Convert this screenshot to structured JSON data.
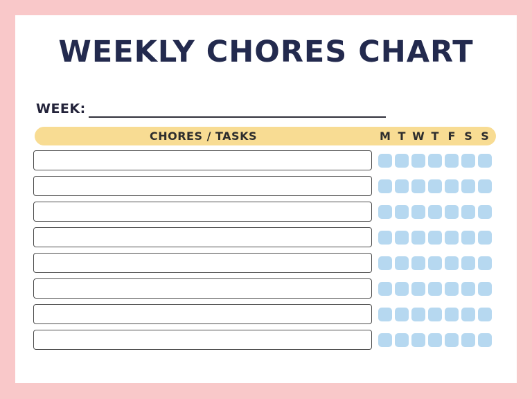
{
  "title": "WEEKLY CHORES CHART",
  "week": {
    "label": "WEEK:",
    "value": "",
    "placeholder": ""
  },
  "table": {
    "header_label": "CHORES / TASKS",
    "day_headers": [
      "M",
      "T",
      "W",
      "T",
      "F",
      "S",
      "S"
    ],
    "row_count": 8,
    "rows": [
      {
        "task": "",
        "checks": [
          false,
          false,
          false,
          false,
          false,
          false,
          false
        ]
      },
      {
        "task": "",
        "checks": [
          false,
          false,
          false,
          false,
          false,
          false,
          false
        ]
      },
      {
        "task": "",
        "checks": [
          false,
          false,
          false,
          false,
          false,
          false,
          false
        ]
      },
      {
        "task": "",
        "checks": [
          false,
          false,
          false,
          false,
          false,
          false,
          false
        ]
      },
      {
        "task": "",
        "checks": [
          false,
          false,
          false,
          false,
          false,
          false,
          false
        ]
      },
      {
        "task": "",
        "checks": [
          false,
          false,
          false,
          false,
          false,
          false,
          false
        ]
      },
      {
        "task": "",
        "checks": [
          false,
          false,
          false,
          false,
          false,
          false,
          false
        ]
      },
      {
        "task": "",
        "checks": [
          false,
          false,
          false,
          false,
          false,
          false,
          false
        ]
      }
    ]
  },
  "colors": {
    "frame_pink": "#f9c8c9",
    "page_white": "#ffffff",
    "title_navy": "#232a4e",
    "header_yellow": "#f8dc93",
    "checkbox_blue": "#b6d8f0",
    "day_letter_dark": "#2d2d2d",
    "task_box_border": "#4d4d4d"
  }
}
